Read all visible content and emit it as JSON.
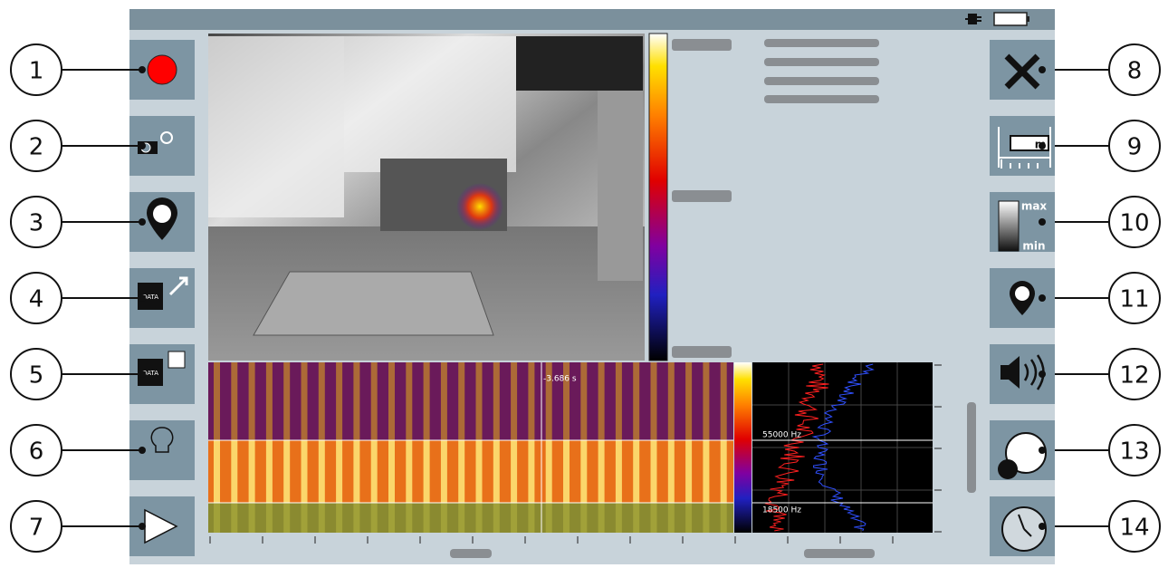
{
  "callouts": [
    1,
    2,
    3,
    4,
    5,
    6,
    7,
    8,
    9,
    10,
    11,
    12,
    13,
    14
  ],
  "buttons": {
    "data_export": "DATA",
    "data_save": "DATA",
    "scale_unit": "m",
    "range_max": "max",
    "range_min": "min"
  },
  "spectrogram": {
    "time_label": "-3.686 s"
  },
  "spectrum": {
    "markers": [
      "55000 Hz",
      "18500 Hz"
    ]
  }
}
